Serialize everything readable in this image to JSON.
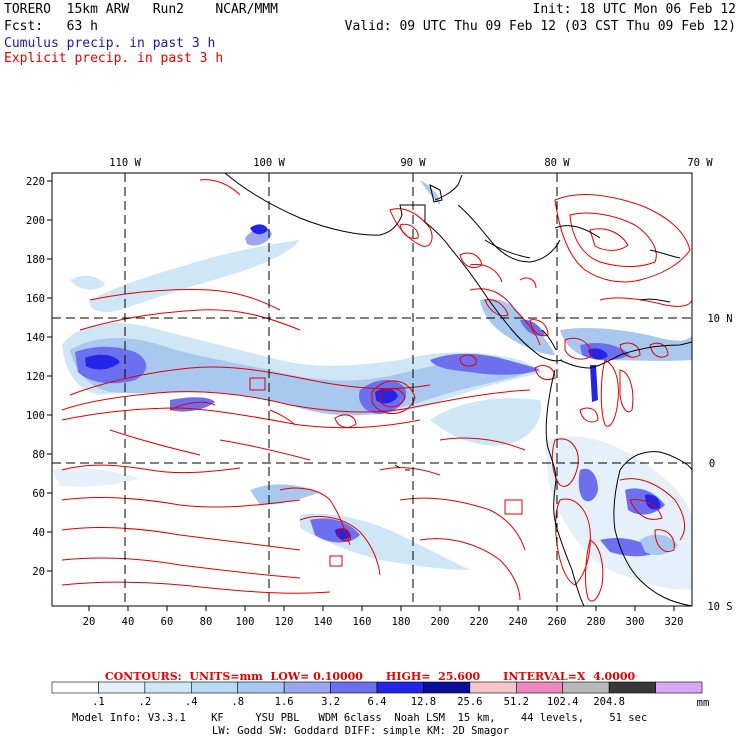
{
  "header": {
    "line1_left": "TORERO  15km ARW   Run2    NCAR/MMM",
    "line1_right": "Init: 18 UTC Mon 06 Feb 12",
    "line2_left": "Fcst:   63 h",
    "line2_right": "Valid: 09 UTC Thu 09 Feb 12 (03 CST Thu 09 Feb 12)",
    "cumulus_label": "Cumulus precip. in past 3 h",
    "explicit_label": "Explicit precip. in past 3 h"
  },
  "map": {
    "lon_labels": [
      "110 W",
      "100 W",
      "90 W",
      "80 W",
      "70 W"
    ],
    "lat_labels": [
      "10 N",
      "0",
      "10 S"
    ],
    "y_ticks": [
      "220",
      "200",
      "180",
      "160",
      "140",
      "120",
      "100",
      "80",
      "60",
      "40",
      "20"
    ],
    "x_ticks": [
      "20",
      "40",
      "60",
      "80",
      "100",
      "120",
      "140",
      "160",
      "180",
      "200",
      "220",
      "240",
      "260",
      "280",
      "300",
      "320"
    ]
  },
  "contour_info": "CONTOURS:  UNITS=mm  LOW= 0.10000      HIGH=  25.600      INTERVAL=X  4.0000",
  "colorbar": {
    "labels": [
      ".1",
      ".2",
      ".4",
      ".8",
      "1.6",
      "3.2",
      "6.4",
      "12.8",
      "25.6",
      "51.2",
      "102.4",
      "204.8"
    ],
    "unit": "mm",
    "colors": [
      "#ffffff",
      "#e6f0fa",
      "#cfe6f6",
      "#b5dcf2",
      "#a8c8ef",
      "#9aa6ee",
      "#6c70ee",
      "#2424e8",
      "#0c0c9c",
      "#f4c8c8",
      "#ee88bc",
      "#b8b8b8",
      "#383838",
      "#d8a8f6"
    ]
  },
  "model_info": {
    "line1": "Model Info: V3.3.1    KF     YSU PBL   WDM 6class  Noah LSM  15 km,    44 levels,    51 sec",
    "line2": "LW: Godd SW: Goddard DIFF: simple KM: 2D Smagor"
  }
}
